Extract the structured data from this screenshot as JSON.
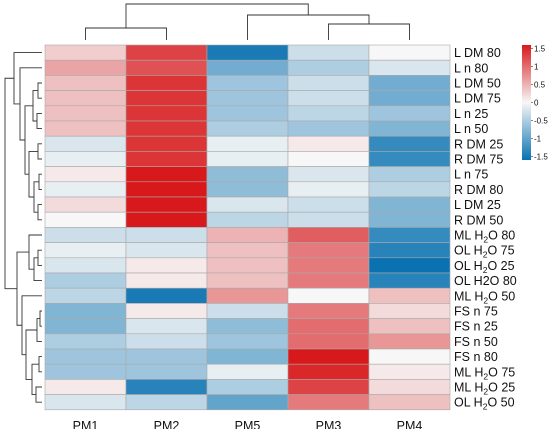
{
  "chart_data": {
    "type": "heatmap",
    "columns": [
      "PM1",
      "PM2",
      "PM5",
      "PM3",
      "PM4"
    ],
    "rows": [
      {
        "label": "L DM 80",
        "pre": "L DM 80",
        "sub": "",
        "post": "",
        "values": [
          0.3,
          1.3,
          -1.5,
          -0.3,
          0.0
        ]
      },
      {
        "label": "L n 80",
        "pre": "L n 80",
        "sub": "",
        "post": "",
        "values": [
          0.6,
          1.2,
          -0.9,
          -0.5,
          -0.2
        ]
      },
      {
        "label": "L DM 50",
        "pre": "L DM 50",
        "sub": "",
        "post": "",
        "values": [
          0.4,
          1.4,
          -0.6,
          -0.3,
          -0.9
        ]
      },
      {
        "label": "L DM 75",
        "pre": "L DM 75",
        "sub": "",
        "post": "",
        "values": [
          0.4,
          1.4,
          -0.6,
          -0.3,
          -0.9
        ]
      },
      {
        "label": "L n 25",
        "pre": "L n 25",
        "sub": "",
        "post": "",
        "values": [
          0.4,
          1.4,
          -0.6,
          -0.4,
          -0.6
        ]
      },
      {
        "label": "L n 50",
        "pre": "L n 50",
        "sub": "",
        "post": "",
        "values": [
          0.4,
          1.4,
          -0.5,
          -0.6,
          -0.8
        ]
      },
      {
        "label": "R DM 25",
        "pre": "R DM 25",
        "sub": "",
        "post": "",
        "values": [
          -0.2,
          1.4,
          -0.1,
          0.1,
          -1.3
        ]
      },
      {
        "label": "R DM 75",
        "pre": "R DM 75",
        "sub": "",
        "post": "",
        "values": [
          -0.1,
          1.4,
          -0.1,
          0.0,
          -1.3
        ]
      },
      {
        "label": "L n 75",
        "pre": "L n 75",
        "sub": "",
        "post": "",
        "values": [
          0.1,
          1.6,
          -0.7,
          -0.2,
          -0.5
        ]
      },
      {
        "label": "R DM 80",
        "pre": "R DM 80",
        "sub": "",
        "post": "",
        "values": [
          -0.1,
          1.6,
          -0.7,
          -0.1,
          -0.4
        ]
      },
      {
        "label": "L DM 25",
        "pre": "L DM 25",
        "sub": "",
        "post": "",
        "values": [
          0.2,
          1.6,
          -0.2,
          -0.3,
          -0.8
        ]
      },
      {
        "label": "R DM 50",
        "pre": "R DM 50",
        "sub": "",
        "post": "",
        "values": [
          0.0,
          1.6,
          -0.4,
          -0.3,
          -0.8
        ]
      },
      {
        "label": "ML H2O 80",
        "pre": "ML H",
        "sub": "2",
        "post": "O 80",
        "values": [
          -0.3,
          -0.3,
          0.5,
          1.1,
          -1.3
        ]
      },
      {
        "label": "OL H2O 75",
        "pre": "OL H",
        "sub": "2",
        "post": "O 75",
        "values": [
          -0.1,
          -0.2,
          0.4,
          0.9,
          -1.4
        ]
      },
      {
        "label": "OL H2O 25",
        "pre": "OL H",
        "sub": "2",
        "post": "O 25",
        "values": [
          -0.2,
          0.1,
          0.4,
          0.9,
          -1.6
        ]
      },
      {
        "label": "OL H2O 80",
        "pre": "OL H2O 80",
        "sub": "",
        "post": "",
        "values": [
          -0.5,
          0.1,
          0.4,
          0.9,
          -1.4
        ]
      },
      {
        "label": "ML H2O 50",
        "pre": "ML H",
        "sub": "2",
        "post": "O 50",
        "values": [
          -0.4,
          -1.5,
          0.7,
          0.0,
          0.4
        ]
      },
      {
        "label": "FS n 75",
        "pre": "FS n 75",
        "sub": "",
        "post": "",
        "values": [
          -0.8,
          0.1,
          -0.3,
          0.9,
          0.2
        ]
      },
      {
        "label": "FS n 25",
        "pre": "FS n 25",
        "sub": "",
        "post": "",
        "values": [
          -0.8,
          -0.2,
          -0.7,
          1.0,
          0.4
        ]
      },
      {
        "label": "FS n 50",
        "pre": "FS n 50",
        "sub": "",
        "post": "",
        "values": [
          -0.5,
          -0.3,
          -0.6,
          1.0,
          0.7
        ]
      },
      {
        "label": "FS n 80",
        "pre": "FS n 80",
        "sub": "",
        "post": "",
        "values": [
          -0.6,
          -0.6,
          -0.8,
          1.6,
          0.0
        ]
      },
      {
        "label": "ML H2O 75",
        "pre": "ML H",
        "sub": "2",
        "post": "O 75",
        "values": [
          -0.6,
          -0.6,
          -0.1,
          1.5,
          0.1
        ]
      },
      {
        "label": "ML H2O 25",
        "pre": "ML H",
        "sub": "2",
        "post": "O 25",
        "values": [
          0.1,
          -1.4,
          -0.5,
          1.3,
          0.2
        ]
      },
      {
        "label": "OL H2O 50",
        "pre": "OL H",
        "sub": "2",
        "post": "O 50",
        "values": [
          -0.2,
          -0.4,
          -1.0,
          0.9,
          0.4
        ]
      }
    ],
    "colorbar": {
      "min": -1.6,
      "max": 1.6,
      "ticks": [
        {
          "value": 1.5,
          "label": "1.5"
        },
        {
          "value": 1,
          "label": "1"
        },
        {
          "value": 0.5,
          "label": "0.5"
        },
        {
          "value": 0,
          "label": "0"
        },
        {
          "value": -0.5,
          "label": "-0.5"
        },
        {
          "value": -1,
          "label": "-1"
        },
        {
          "value": -1.5,
          "label": "-1.5"
        }
      ],
      "colors": {
        "low": "#0a72b1",
        "mid": "#f7f7f7",
        "high": "#d7191c"
      }
    },
    "column_dendrogram": true,
    "row_dendrogram": true,
    "grid": true,
    "legend_position": "right"
  }
}
